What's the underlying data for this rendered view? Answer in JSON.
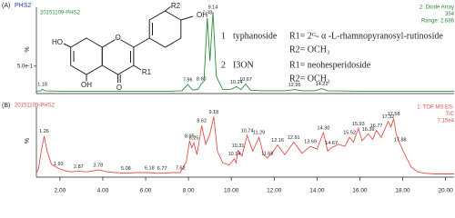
{
  "chart_data": [
    {
      "type": "line",
      "panel_label": "(A)",
      "title": "PHS2",
      "sample": "20151109-PHS2",
      "right_labels": [
        "2: Diode Array",
        "354",
        "Range: 2.686"
      ],
      "color": "#2e8b3a",
      "y_label": "%",
      "xlim": [
        0.9,
        20.4
      ],
      "ylim": [
        0,
        1.65
      ],
      "yticks": [
        {
          "value": 0.5,
          "label": "5.0e-1"
        }
      ],
      "x": [
        0.9,
        1.1,
        1.18,
        1.3,
        2,
        4,
        6,
        7,
        7.7,
        7.96,
        8.2,
        8.45,
        8.6,
        8.72,
        8.88,
        9.0,
        9.14,
        9.3,
        9.6,
        10.0,
        10.24,
        10.45,
        10.67,
        10.9,
        11.5,
        12.5,
        12.95,
        13.3,
        13.9,
        14.22,
        14.5,
        16,
        18,
        20.4
      ],
      "values": [
        0.01,
        0.02,
        0.05,
        0.02,
        0.01,
        0.01,
        0.01,
        0.01,
        0.02,
        0.14,
        0.03,
        0.05,
        0.16,
        0.2,
        1.45,
        0.6,
        1.56,
        0.3,
        0.04,
        0.05,
        0.1,
        0.04,
        0.15,
        0.03,
        0.02,
        0.02,
        0.04,
        0.02,
        0.02,
        0.06,
        0.02,
        0.01,
        0.01,
        0.01
      ],
      "peaks": [
        {
          "x": 1.18,
          "label": "1.18",
          "y": 0.05
        },
        {
          "x": 7.96,
          "label": "7.96",
          "y": 0.14
        },
        {
          "x": 8.6,
          "label": "8.60",
          "y": 0.16
        },
        {
          "x": 8.88,
          "label": "8.88",
          "y": 1.45
        },
        {
          "x": 9.14,
          "label": "9.14",
          "y": 1.56
        },
        {
          "x": 10.24,
          "label": "10.24",
          "y": 0.1
        },
        {
          "x": 10.67,
          "label": "10.67",
          "y": 0.15
        },
        {
          "x": 12.95,
          "label": "12.95",
          "y": 0.04
        },
        {
          "x": 14.22,
          "label": "14.22",
          "y": 0.06
        }
      ],
      "annotations": [
        "1",
        "typhanoside",
        "R1= 2ᴳ- α -L-rhamnopyranosyl-rutinoside",
        "R2= OCH₃",
        "2",
        "I3ON",
        "R1=  neohesperidoside",
        "R2= OCH₃"
      ],
      "structure_labels": [
        "R2",
        "OH",
        "HO",
        "O",
        "R1",
        "OH",
        "O"
      ]
    },
    {
      "type": "line",
      "panel_label": "(B)",
      "sample": "20151109-PHS2",
      "right_labels": [
        "1: TOF MS ES-",
        "TIC",
        "7.15e4"
      ],
      "color": "#e0504a",
      "y_label": "%",
      "xlim": [
        0.9,
        20.4
      ],
      "ylim": [
        0,
        100
      ],
      "xticks": [
        {
          "value": 2,
          "label": "2.00"
        },
        {
          "value": 4,
          "label": "4.00"
        },
        {
          "value": 6,
          "label": "6.00"
        },
        {
          "value": 8,
          "label": "8.00"
        },
        {
          "value": 10,
          "label": "10.00"
        },
        {
          "value": 12,
          "label": "12.00"
        },
        {
          "value": 14,
          "label": "14.00"
        },
        {
          "value": 16,
          "label": "16.00"
        },
        {
          "value": 18,
          "label": "18.00"
        },
        {
          "value": 20,
          "label": "20.00"
        }
      ],
      "x": [
        0.9,
        1.0,
        1.1,
        1.26,
        1.4,
        1.6,
        1.93,
        2.2,
        2.5,
        2.87,
        3.2,
        3.5,
        3.78,
        4.2,
        4.6,
        5.08,
        5.5,
        6.18,
        6.5,
        6.77,
        7.2,
        7.62,
        7.9,
        8.05,
        8.15,
        8.25,
        8.4,
        8.62,
        8.8,
        9.0,
        9.18,
        9.35,
        9.6,
        9.9,
        10.14,
        10.22,
        10.31,
        10.5,
        10.74,
        11.0,
        11.29,
        11.5,
        11.68,
        11.9,
        12.16,
        12.5,
        12.91,
        13.3,
        13.69,
        14.0,
        14.3,
        14.5,
        14.67,
        15.0,
        15.3,
        15.52,
        15.7,
        15.93,
        16.1,
        16.39,
        16.6,
        16.77,
        17.0,
        17.32,
        17.45,
        17.58,
        17.7,
        17.88,
        18.1,
        18.4,
        18.7,
        19.0,
        19.5,
        20.0,
        20.4
      ],
      "values": [
        3,
        10,
        30,
        57,
        35,
        16,
        10,
        7,
        5,
        6,
        5,
        6,
        8,
        5,
        4,
        3,
        4,
        4,
        3,
        3,
        4,
        4,
        20,
        50,
        40,
        47,
        30,
        72,
        45,
        60,
        85,
        35,
        18,
        15,
        24,
        18,
        36,
        28,
        58,
        35,
        55,
        30,
        25,
        32,
        44,
        30,
        48,
        32,
        42,
        38,
        62,
        35,
        40,
        45,
        42,
        55,
        48,
        68,
        50,
        60,
        52,
        65,
        55,
        78,
        70,
        82,
        60,
        45,
        30,
        12,
        5,
        3,
        2,
        2,
        2
      ],
      "peaks": [
        {
          "x": 1.26,
          "label": "1.26",
          "y": 57
        },
        {
          "x": 1.93,
          "label": "1.93",
          "y": 10
        },
        {
          "x": 2.87,
          "label": "2.87",
          "y": 6
        },
        {
          "x": 3.78,
          "label": "3.78",
          "y": 8
        },
        {
          "x": 5.08,
          "label": "5.08",
          "y": 3
        },
        {
          "x": 6.18,
          "label": "6.18",
          "y": 4
        },
        {
          "x": 6.77,
          "label": "6.77",
          "y": 3
        },
        {
          "x": 7.62,
          "label": "7.62",
          "y": 4
        },
        {
          "x": 8.05,
          "label": "8.05",
          "y": 50
        },
        {
          "x": 8.25,
          "label": "8.25",
          "y": 47
        },
        {
          "x": 8.62,
          "label": "8.62",
          "y": 72
        },
        {
          "x": 9.18,
          "label": "9.18",
          "y": 85
        },
        {
          "x": 10.14,
          "label": "10.14",
          "y": 24
        },
        {
          "x": 10.31,
          "label": "10.31",
          "y": 36
        },
        {
          "x": 10.74,
          "label": "10.74",
          "y": 58
        },
        {
          "x": 11.29,
          "label": "11.29",
          "y": 55
        },
        {
          "x": 11.68,
          "label": "11.68",
          "y": 25
        },
        {
          "x": 12.16,
          "label": "12.16",
          "y": 44
        },
        {
          "x": 12.91,
          "label": "12.91",
          "y": 48
        },
        {
          "x": 13.69,
          "label": "13.69",
          "y": 42
        },
        {
          "x": 14.3,
          "label": "14.30",
          "y": 62
        },
        {
          "x": 14.67,
          "label": "14.67",
          "y": 40
        },
        {
          "x": 15.52,
          "label": "15.52",
          "y": 55
        },
        {
          "x": 15.93,
          "label": "15.93",
          "y": 68
        },
        {
          "x": 16.39,
          "label": "16.39",
          "y": 60
        },
        {
          "x": 16.77,
          "label": "16.77",
          "y": 65
        },
        {
          "x": 17.32,
          "label": "17.32",
          "y": 78
        },
        {
          "x": 17.58,
          "label": "17.58",
          "y": 82
        },
        {
          "x": 17.88,
          "label": "17.88",
          "y": 45
        }
      ]
    }
  ]
}
